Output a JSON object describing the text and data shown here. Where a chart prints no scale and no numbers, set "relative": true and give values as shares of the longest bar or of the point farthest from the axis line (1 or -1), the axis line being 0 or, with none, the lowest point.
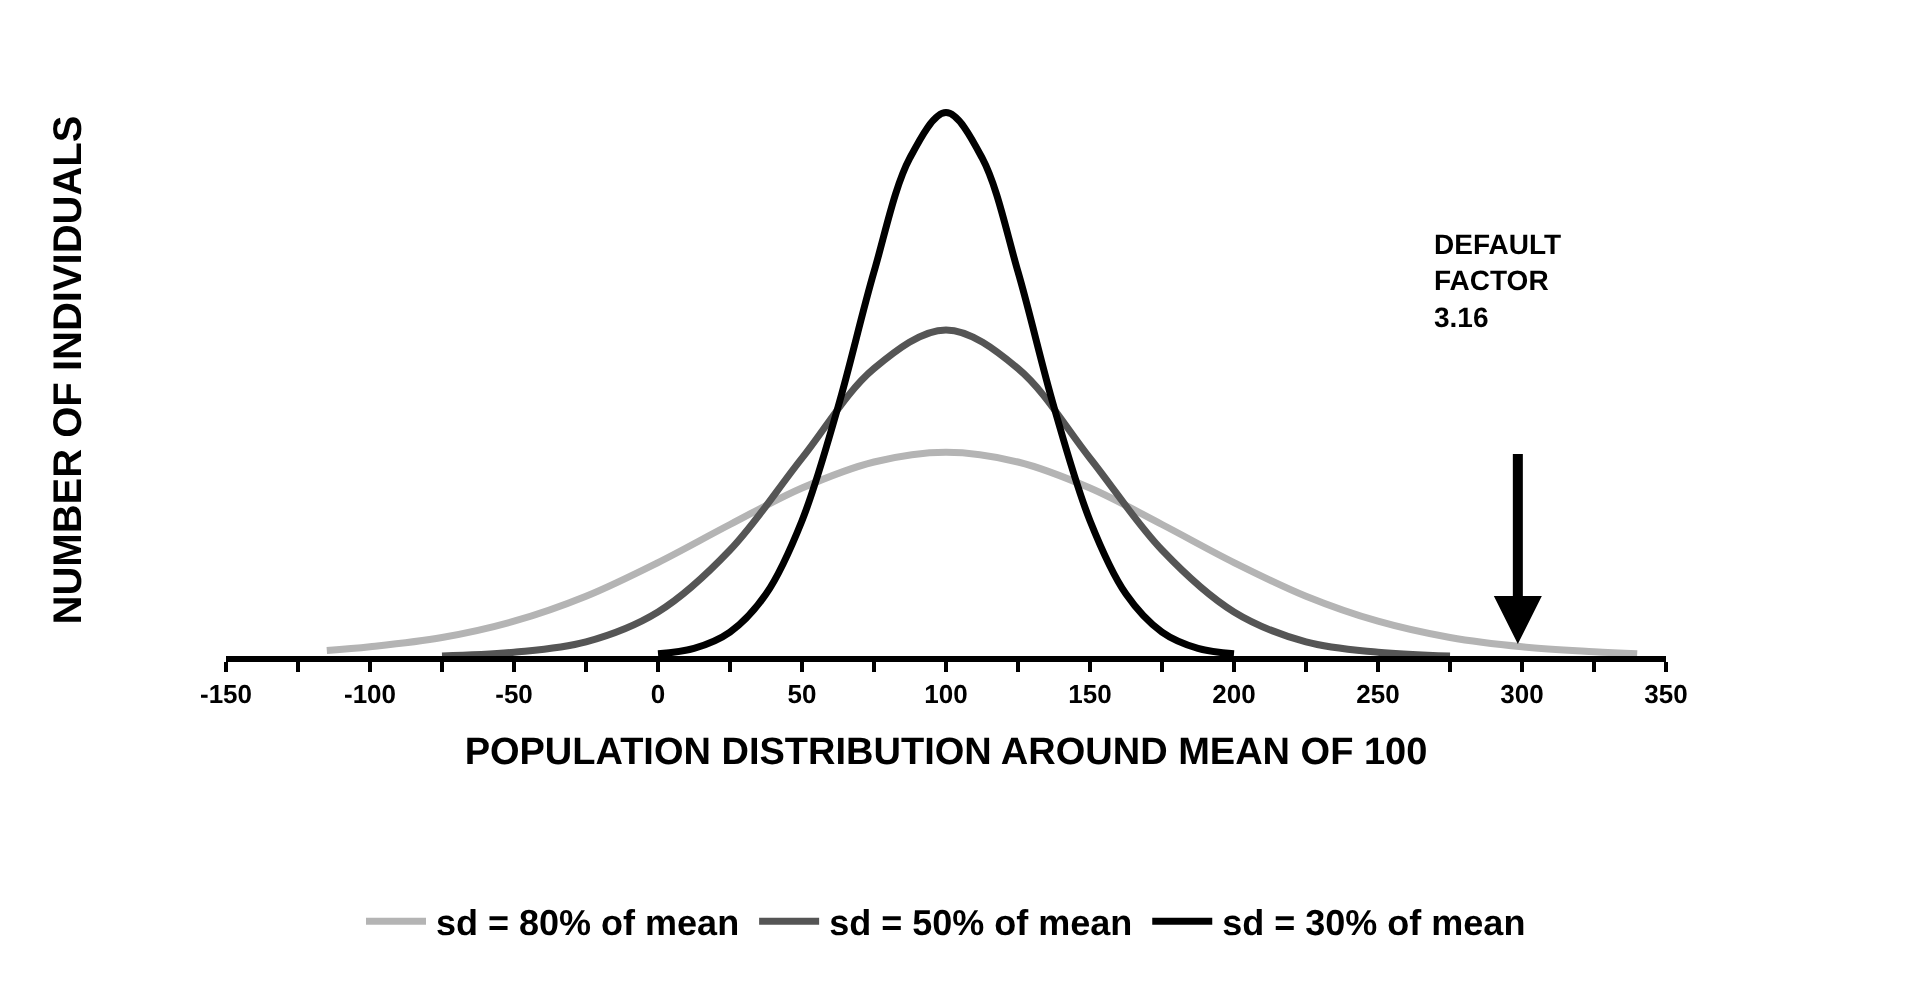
{
  "chart_data": {
    "type": "line",
    "relative": true,
    "xlabel": "POPULATION DISTRIBUTION AROUND MEAN OF 100",
    "ylabel": "NUMBER OF INDIVIDUALS",
    "xlim": [
      -150,
      350
    ],
    "xticks": [
      -150,
      {
        "value": -125,
        "label": null
      },
      -100,
      {
        "value": -75,
        "label": null
      },
      -50,
      {
        "value": -25,
        "label": null
      },
      0,
      {
        "value": 25,
        "label": null
      },
      50,
      {
        "value": 75,
        "label": null
      },
      100,
      {
        "value": 125,
        "label": null
      },
      150,
      {
        "value": 175,
        "label": null
      },
      200,
      {
        "value": 225,
        "label": null
      },
      250,
      {
        "value": 275,
        "label": null
      },
      300,
      {
        "value": 325,
        "label": null
      },
      350
    ],
    "series": [
      {
        "name": "sd = 80% of mean",
        "color": "#b4b4b4",
        "x": [
          -115,
          -100,
          -75,
          -50,
          -25,
          0,
          25,
          50,
          75,
          100,
          125,
          150,
          175,
          200,
          225,
          250,
          275,
          300,
          325,
          340
        ],
        "values": [
          0.01,
          0.017,
          0.034,
          0.064,
          0.11,
          0.172,
          0.242,
          0.309,
          0.357,
          0.375,
          0.357,
          0.309,
          0.242,
          0.172,
          0.11,
          0.064,
          0.034,
          0.017,
          0.008,
          0.004
        ]
      },
      {
        "name": "sd = 50% of mean",
        "color": "#555555",
        "x": [
          -75,
          -50,
          -25,
          0,
          25,
          50,
          75,
          100,
          125,
          150,
          175,
          200,
          225,
          250,
          275
        ],
        "values": [
          0,
          0.007,
          0.026,
          0.081,
          0.195,
          0.364,
          0.529,
          0.6,
          0.529,
          0.364,
          0.195,
          0.081,
          0.026,
          0.007,
          0
        ]
      },
      {
        "name": "sd = 30% of mean",
        "color": "#000000",
        "x": [
          0,
          12.5,
          25,
          37.5,
          50,
          62.5,
          75,
          87.5,
          100,
          112.5,
          125,
          137.5,
          150,
          162.5,
          175,
          187.5,
          200
        ],
        "values": [
          0.004,
          0.014,
          0.044,
          0.114,
          0.249,
          0.458,
          0.707,
          0.917,
          1,
          0.917,
          0.707,
          0.458,
          0.249,
          0.114,
          0.044,
          0.014,
          0.004
        ]
      }
    ],
    "annotations": [
      "DEFAULT\nFACTOR\n3.16"
    ],
    "grid": false,
    "legend": "bottom",
    "marker": "none",
    "line_style": "solid"
  }
}
